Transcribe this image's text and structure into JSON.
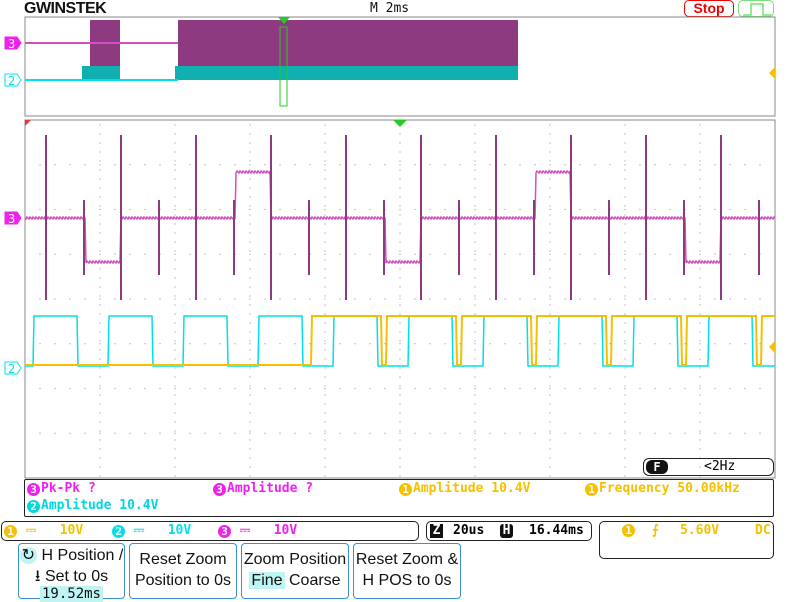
{
  "header": {
    "brand": "GWINSTEK",
    "timebase": "M 2ms",
    "run_state": "Stop"
  },
  "channels": {
    "ch1": {
      "label": "1",
      "color": "#f5c000"
    },
    "ch2": {
      "label": "2",
      "color": "#00e0e8"
    },
    "ch3": {
      "label": "3",
      "color": "#ee22ee"
    }
  },
  "filter": {
    "icon": "F",
    "value": "<2Hz"
  },
  "measurements": [
    {
      "ch": "3",
      "text": "Pk-Pk ?",
      "color": "#ee22ee"
    },
    {
      "ch": "3",
      "text": "Amplitude ?",
      "color": "#ee22ee"
    },
    {
      "ch": "1",
      "text": "Amplitude 10.4V",
      "color": "#f5c000"
    },
    {
      "ch": "1",
      "text": "Frequency 50.00kHz",
      "color": "#f5c000"
    },
    {
      "ch": "2",
      "text": "Amplitude 10.4V",
      "color": "#00d8e0"
    }
  ],
  "vscale": [
    {
      "ch": "1",
      "coupling": "⎓",
      "scale": "10V"
    },
    {
      "ch": "2",
      "coupling": "⎓",
      "scale": "10V"
    },
    {
      "ch": "3",
      "coupling": "⎓",
      "scale": "10V"
    }
  ],
  "zoom_info": {
    "z_label": "Z",
    "zoom_scale": "20us",
    "h_label": "H",
    "h_position": "16.44ms"
  },
  "trigger": {
    "ch": "1",
    "slope": "rising",
    "level": "5.60V",
    "coupling": "DC"
  },
  "softkeys": [
    {
      "line1": "H Position /",
      "line2": "Set to 0s",
      "value": "19.52ms"
    },
    {
      "line1": "Reset Zoom",
      "line2": "Position to 0s"
    },
    {
      "line1": "Zoom Position",
      "opt1": "Fine",
      "opt2": "Coarse"
    },
    {
      "line1": "Reset Zoom &",
      "line2": "H POS to 0s"
    }
  ]
}
